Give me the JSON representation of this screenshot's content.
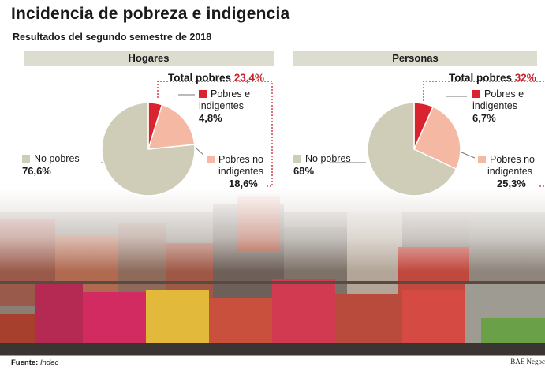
{
  "title": "Incidencia de pobreza e indigencia",
  "subtitle": "Resultados del segundo semestre de 2018",
  "footer": {
    "source_label": "Fuente:",
    "source_value": "Indec",
    "credit": "BAE Negoc"
  },
  "colors": {
    "no_pobres": "#cfcdb7",
    "indigentes": "#d9232e",
    "pobres_no_indigentes": "#f5b8a3",
    "band": "#dcdccf",
    "accent": "#c8232c"
  },
  "chart_data": [
    {
      "type": "pie",
      "title": "Hogares",
      "total_label": "Total pobres",
      "total_value": "23,4%",
      "slices": [
        {
          "name": "Pobres e indigentes",
          "label_lines": [
            "Pobres e",
            "indigentes"
          ],
          "value": 4.8,
          "value_label": "4,8%"
        },
        {
          "name": "Pobres no indigentes",
          "label_lines": [
            "Pobres no",
            "indigentes"
          ],
          "value": 18.6,
          "value_label": "18,6%"
        },
        {
          "name": "No pobres",
          "label_lines": [
            "No pobres"
          ],
          "value": 76.6,
          "value_label": "76,6%"
        }
      ]
    },
    {
      "type": "pie",
      "title": "Personas",
      "total_label": "Total pobres",
      "total_value": "32%",
      "slices": [
        {
          "name": "Pobres e indigentes",
          "label_lines": [
            "Pobres e",
            "indigentes"
          ],
          "value": 6.7,
          "value_label": "6,7%"
        },
        {
          "name": "Pobres no indigentes",
          "label_lines": [
            "Pobres no",
            "indigentes"
          ],
          "value": 25.3,
          "value_label": "25,3%"
        },
        {
          "name": "No pobres",
          "label_lines": [
            "No pobres"
          ],
          "value": 68,
          "value_label": "68%"
        }
      ]
    }
  ]
}
